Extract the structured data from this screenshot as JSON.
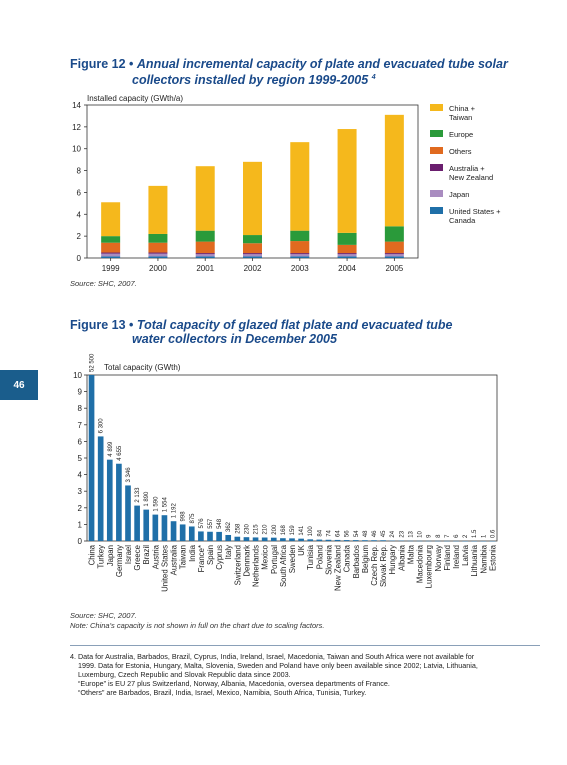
{
  "page_number": "46",
  "figure12": {
    "label": "Figure 12 •",
    "title_line1": "Annual incremental capacity of plate and evacuated tube solar",
    "title_line2": "collectors installed by region 1999-2005",
    "title_sup": "4",
    "source": "Source: SHC, 2007."
  },
  "figure13": {
    "label": "Figure 13 •",
    "title_line1": "Total capacity of glazed flat plate and evacuated tube",
    "title_line2": "water collectors in December 2005",
    "source": "Source: SHC, 2007.",
    "note": "Note: China's capacity is not shown in full on the chart due to scaling factors."
  },
  "footnotes": [
    "4. Data for Australia, Barbados, Brazil, Cyprus, India, Ireland, Israel, Macedonia, Taiwan and South Africa were not available for",
    "1999. Data for Estonia, Hungary, Malta, Slovenia, Sweden and Poland have only been available since 2002; Latvia, Lithuania,",
    "Luxemburg, Czech Republic and Slovak Republic data since 2003.",
    "“Europe” is EU 27 plus Switzerland, Norway, Albania, Macedonia, oversea departments of France.",
    "“Others” are Barbados, Brazil, India, Israel, Mexico, Namibia, South Africa, Tunisia, Turkey."
  ],
  "chart_data": [
    {
      "type": "bar",
      "stacked": true,
      "ylabel": "Installed capacity (GWth/a)",
      "ylim": [
        0,
        14
      ],
      "yticks": [
        0,
        2,
        4,
        6,
        8,
        10,
        12,
        14
      ],
      "grid": false,
      "legend_position": "right",
      "categories": [
        "1999",
        "2000",
        "2001",
        "2002",
        "2003",
        "2004",
        "2005"
      ],
      "series": [
        {
          "name": "United States + Canada",
          "color": "#1f6fa8",
          "values": [
            0.15,
            0.15,
            0.15,
            0.15,
            0.15,
            0.15,
            0.15
          ]
        },
        {
          "name": "Japan",
          "color": "#a98cc0",
          "values": [
            0.25,
            0.25,
            0.2,
            0.2,
            0.2,
            0.2,
            0.2
          ]
        },
        {
          "name": "Australia + New Zealand",
          "color": "#6a1e6e",
          "values": [
            0.1,
            0.1,
            0.1,
            0.1,
            0.1,
            0.1,
            0.1
          ]
        },
        {
          "name": "Others",
          "color": "#e06a1f",
          "values": [
            0.9,
            0.9,
            1.05,
            0.9,
            1.1,
            0.75,
            1.05
          ]
        },
        {
          "name": "Europe",
          "color": "#2a9a3a",
          "values": [
            0.6,
            0.8,
            1.0,
            0.75,
            0.95,
            1.1,
            1.4
          ]
        },
        {
          "name": "China + Taiwan",
          "color": "#f5b81c",
          "values": [
            3.1,
            4.4,
            5.9,
            6.7,
            8.1,
            9.5,
            10.2
          ]
        }
      ]
    },
    {
      "type": "bar",
      "ylabel": "Total capacity (GWth)",
      "ylim": [
        0,
        10
      ],
      "yticks": [
        0,
        1,
        2,
        3,
        4,
        5,
        6,
        7,
        8,
        9,
        10
      ],
      "grid": false,
      "color": "#1f6fa8",
      "categories": [
        "China",
        "Turkey",
        "Japan",
        "Germany",
        "Israel",
        "Greece",
        "Brazil",
        "Austria",
        "United States",
        "Australia",
        "Taiwan",
        "India",
        "France*",
        "Spain",
        "Cyprus",
        "Italy",
        "Switzerland",
        "Denmark",
        "Netherlands",
        "Mexico",
        "Portugal",
        "South Africa",
        "Sweden",
        "UK",
        "Tunisia",
        "Poland",
        "Slovenia",
        "New Zealand",
        "Canada",
        "Barbados",
        "Belgium",
        "Czech Rep.",
        "Slovak Rep.",
        "Hungary",
        "Albania",
        "Malta",
        "Macedonia",
        "Luxembourg",
        "Norway",
        "Finland",
        "Ireland",
        "Latvia",
        "Lithuania",
        "Namibia",
        "Estonia"
      ],
      "values": [
        52500,
        6300,
        4899,
        4655,
        3346,
        2133,
        1890,
        1590,
        1554,
        1192,
        998,
        875,
        576,
        557,
        548,
        362,
        258,
        230,
        215,
        210,
        200,
        168,
        159,
        141,
        100,
        84,
        74,
        64,
        56,
        54,
        48,
        46,
        45,
        24,
        23,
        13,
        10,
        9,
        8,
        7,
        6,
        2,
        1.5,
        1,
        0.6
      ],
      "value_labels": [
        "52 500",
        "6 300",
        "4 899",
        "4 655",
        "3 346",
        "2 133",
        "1 890",
        "1 590",
        "1 554",
        "1 192",
        "998",
        "875",
        "576",
        "557",
        "548",
        "362",
        "258",
        "230",
        "215",
        "210",
        "200",
        "168",
        "159",
        "141",
        "100",
        "84",
        "74",
        "64",
        "56",
        "54",
        "48",
        "46",
        "45",
        "24",
        "23",
        "13",
        "10",
        "9",
        "8",
        "7",
        "6",
        "2",
        "1.5",
        "1",
        "0.6"
      ]
    }
  ]
}
